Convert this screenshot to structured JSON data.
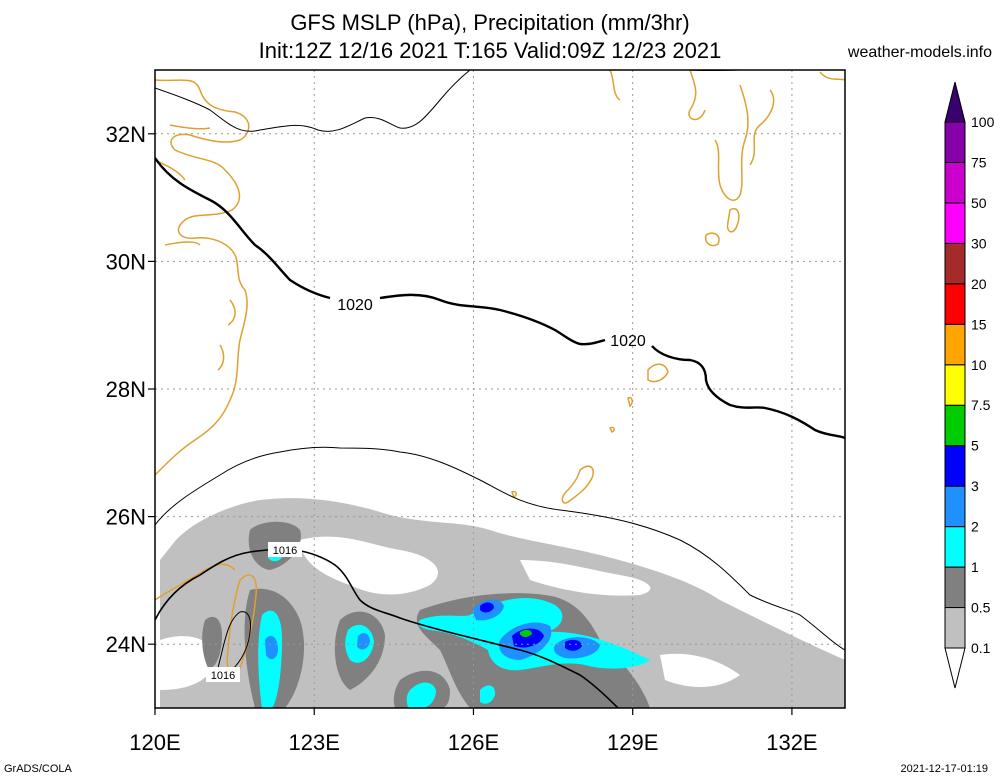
{
  "title": {
    "line1": "GFS MSLP (hPa), Precipitation (mm/3hr)",
    "line2": "Init:12Z 12/16 2021 T:165 Valid:09Z 12/23 2021"
  },
  "site": "weather-models.info",
  "footer": {
    "left": "GrADS/COLA",
    "right": "2021-12-17-01:19"
  },
  "map": {
    "lon_range": [
      120,
      133
    ],
    "lat_range": [
      23,
      33
    ],
    "lon_ticks": [
      120,
      123,
      126,
      129,
      132
    ],
    "lat_ticks": [
      24,
      26,
      28,
      30,
      32
    ],
    "lon_labels": [
      "120E",
      "123E",
      "126E",
      "129E",
      "132E"
    ],
    "lat_labels": [
      "24N",
      "26N",
      "28N",
      "30N",
      "32N"
    ],
    "grid": true,
    "coast_color": "#e0a030",
    "isobar_labels": [
      "1020",
      "1020",
      "1016",
      "1016"
    ]
  },
  "legend": {
    "levels": [
      "0.1",
      "0.5",
      "1",
      "2",
      "3",
      "5",
      "7.5",
      "10",
      "15",
      "20",
      "30",
      "50",
      "75",
      "100"
    ],
    "colors": [
      "#ffffff",
      "#c0c0c0",
      "#808080",
      "#00ffff",
      "#1e90ff",
      "#0000ff",
      "#00cc00",
      "#ffff00",
      "#ffa500",
      "#ff0000",
      "#a52a2a",
      "#ff00ff",
      "#cc00cc",
      "#8800aa",
      "#3a0070"
    ]
  }
}
